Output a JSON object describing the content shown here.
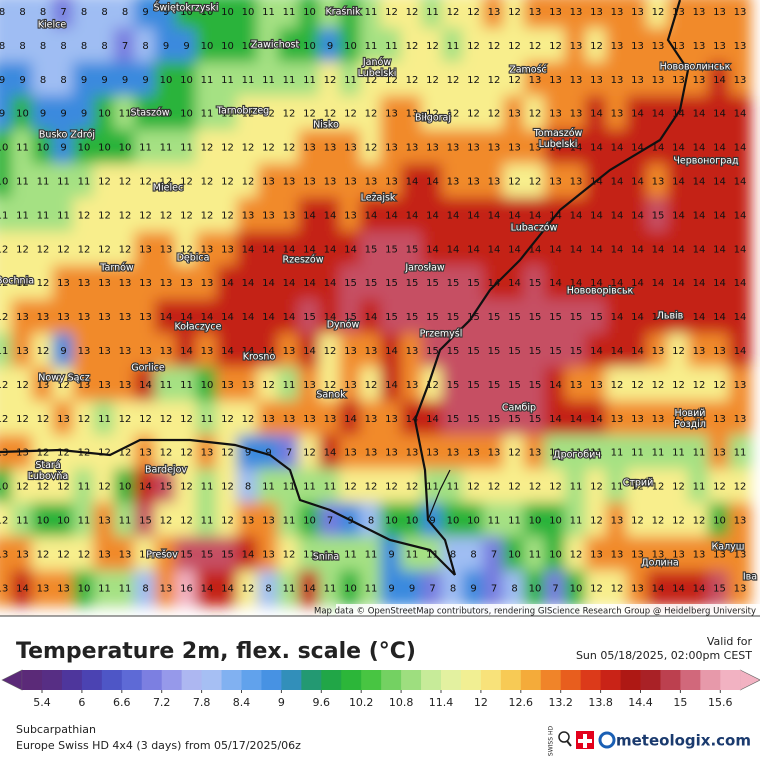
{
  "map": {
    "grid": [
      [
        8,
        8,
        8,
        7,
        8,
        8,
        8,
        9,
        9,
        10,
        10,
        10,
        10,
        11,
        11,
        10,
        11,
        10,
        11,
        12,
        12,
        11,
        12,
        12,
        13,
        12,
        13,
        13,
        13,
        13,
        13,
        13,
        12,
        13,
        13,
        13,
        13
      ],
      [
        8,
        8,
        8,
        8,
        8,
        8,
        7,
        8,
        9,
        9,
        10,
        10,
        10,
        11,
        10,
        10,
        9,
        10,
        11,
        11,
        12,
        12,
        11,
        12,
        12,
        12,
        12,
        12,
        13,
        12,
        13,
        13,
        13,
        13,
        13,
        13,
        13
      ],
      [
        9,
        9,
        8,
        8,
        9,
        9,
        9,
        9,
        10,
        10,
        11,
        11,
        11,
        11,
        11,
        11,
        12,
        11,
        12,
        12,
        12,
        12,
        12,
        12,
        12,
        12,
        13,
        13,
        13,
        13,
        13,
        13,
        13,
        13,
        13,
        14,
        13
      ],
      [
        9,
        10,
        9,
        9,
        9,
        10,
        11,
        10,
        10,
        10,
        11,
        11,
        12,
        12,
        12,
        12,
        12,
        12,
        12,
        13,
        13,
        12,
        12,
        12,
        12,
        13,
        12,
        13,
        13,
        14,
        13,
        14,
        14,
        14,
        14,
        14,
        14
      ],
      [
        10,
        11,
        10,
        9,
        10,
        10,
        10,
        11,
        11,
        11,
        12,
        12,
        12,
        12,
        12,
        13,
        13,
        13,
        12,
        13,
        13,
        13,
        13,
        13,
        13,
        13,
        13,
        14,
        14,
        14,
        14,
        14,
        14,
        14,
        14,
        14,
        14
      ],
      [
        10,
        11,
        11,
        11,
        11,
        12,
        12,
        12,
        12,
        12,
        12,
        12,
        12,
        13,
        13,
        13,
        13,
        13,
        13,
        13,
        14,
        14,
        13,
        13,
        13,
        12,
        12,
        13,
        13,
        14,
        14,
        14,
        13,
        14,
        14,
        14,
        14
      ],
      [
        11,
        11,
        11,
        11,
        12,
        12,
        12,
        12,
        12,
        12,
        12,
        12,
        13,
        13,
        13,
        14,
        14,
        13,
        14,
        14,
        14,
        14,
        14,
        14,
        14,
        14,
        14,
        14,
        14,
        14,
        14,
        14,
        15,
        14,
        14,
        14,
        14
      ],
      [
        12,
        12,
        12,
        12,
        12,
        12,
        12,
        13,
        13,
        12,
        13,
        13,
        14,
        14,
        14,
        14,
        14,
        14,
        15,
        15,
        15,
        14,
        14,
        14,
        14,
        14,
        14,
        14,
        14,
        14,
        14,
        14,
        14,
        14,
        14,
        14,
        14
      ],
      [
        12,
        12,
        12,
        13,
        13,
        13,
        13,
        13,
        13,
        13,
        13,
        14,
        14,
        14,
        14,
        14,
        14,
        15,
        15,
        15,
        15,
        15,
        15,
        15,
        14,
        14,
        15,
        14,
        14,
        14,
        14,
        14,
        14,
        14,
        14,
        14,
        14
      ],
      [
        12,
        13,
        13,
        13,
        13,
        13,
        13,
        13,
        14,
        14,
        14,
        14,
        14,
        14,
        14,
        15,
        14,
        15,
        14,
        15,
        15,
        15,
        15,
        15,
        15,
        15,
        15,
        15,
        15,
        15,
        14,
        14,
        14,
        14,
        14,
        14,
        14
      ],
      [
        11,
        13,
        12,
        9,
        13,
        13,
        13,
        13,
        13,
        14,
        13,
        14,
        14,
        14,
        13,
        14,
        12,
        13,
        13,
        14,
        13,
        15,
        15,
        15,
        15,
        15,
        15,
        15,
        15,
        14,
        14,
        14,
        13,
        12,
        13,
        13,
        14
      ],
      [
        12,
        12,
        13,
        12,
        13,
        13,
        13,
        14,
        11,
        11,
        10,
        13,
        13,
        12,
        11,
        13,
        12,
        13,
        12,
        14,
        13,
        12,
        15,
        15,
        15,
        15,
        15,
        14,
        13,
        13,
        12,
        12,
        12,
        12,
        12,
        12,
        13
      ],
      [
        12,
        12,
        12,
        13,
        12,
        11,
        12,
        12,
        12,
        12,
        11,
        12,
        12,
        13,
        13,
        13,
        13,
        14,
        13,
        13,
        14,
        14,
        15,
        15,
        15,
        15,
        15,
        14,
        14,
        14,
        13,
        13,
        13,
        13,
        13,
        13,
        13
      ],
      [
        13,
        13,
        12,
        12,
        12,
        12,
        12,
        13,
        12,
        12,
        13,
        12,
        9,
        9,
        7,
        12,
        14,
        13,
        13,
        13,
        13,
        13,
        13,
        13,
        13,
        12,
        13,
        11,
        11,
        11,
        11,
        11,
        11,
        11,
        11,
        13,
        11
      ],
      [
        10,
        12,
        12,
        12,
        11,
        12,
        10,
        14,
        15,
        12,
        11,
        12,
        8,
        11,
        11,
        11,
        11,
        12,
        12,
        12,
        12,
        11,
        11,
        12,
        12,
        12,
        12,
        12,
        11,
        12,
        11,
        12,
        12,
        12,
        11,
        12,
        12
      ],
      [
        12,
        11,
        10,
        10,
        11,
        13,
        11,
        15,
        12,
        12,
        11,
        12,
        13,
        13,
        11,
        10,
        7,
        9,
        8,
        10,
        10,
        9,
        10,
        10,
        11,
        11,
        10,
        10,
        11,
        12,
        13,
        12,
        12,
        12,
        12,
        10,
        13
      ],
      [
        13,
        13,
        12,
        12,
        12,
        13,
        13,
        12,
        13,
        15,
        15,
        15,
        14,
        13,
        12,
        11,
        11,
        11,
        11,
        9,
        11,
        11,
        8,
        8,
        7,
        10,
        11,
        10,
        12,
        13,
        13,
        13,
        13,
        13,
        13,
        13,
        13
      ],
      [
        13,
        14,
        13,
        13,
        10,
        11,
        11,
        8,
        13,
        16,
        14,
        14,
        12,
        8,
        11,
        14,
        11,
        10,
        11,
        9,
        9,
        7,
        8,
        9,
        7,
        8,
        10,
        7,
        10,
        12,
        12,
        13,
        14,
        14,
        14,
        15,
        13
      ]
    ],
    "cities": [
      "Kielce",
      "Świętokrzyski",
      "Kraśnik",
      "Zawichost",
      "Janów Lubelski",
      "Zamość",
      "Нововолинськ",
      "Staszów",
      "Tarnobrzeg",
      "Nisko",
      "Biłgoraj",
      "Busko Zdrój",
      "Tomaszów Lubelski",
      "Червоноград",
      "Mielec",
      "Leżajsk",
      "Lubaczów",
      "Dębica",
      "Rzeszów",
      "Jarosław",
      "Tarnów",
      "Bochnia",
      "Нововорівськ",
      "Львів",
      "Kołaczyce",
      "Dynów",
      "Przemyśl",
      "Krosno",
      "Nowy Sącz",
      "Gorlice",
      "Sanok",
      "Самбір",
      "Новий Розділ",
      "Stará Ľubovňa",
      "Bardejov",
      "Дрогобич",
      "Стрий",
      "Prešov",
      "Snina",
      "Калуш",
      "Долина",
      "Іва"
    ],
    "attribution": "Map data © OpenStreetMap contributors, rendering GIScience Research Group @ Heidelberg University"
  },
  "legend": {
    "title": "Temperature 2m, flex. scale (°C)",
    "valid_label": "Valid for",
    "valid_time": "Sun 05/18/2025, 02:00pm CEST",
    "ticks": [
      5.4,
      6,
      6.6,
      7.2,
      7.8,
      8.4,
      9,
      9.6,
      10.2,
      10.8,
      11.4,
      12,
      12.6,
      13.2,
      13.8,
      14.4,
      15,
      15.6
    ],
    "colors": [
      "#5b2a78",
      "#4a3aa8",
      "#4f5fd0",
      "#8b8ae6",
      "#b8c6f4",
      "#6eaaf0",
      "#3a8ade",
      "#1b9e4e",
      "#32be32",
      "#8ad872",
      "#dcf2a6",
      "#f8ee8c",
      "#f6be42",
      "#ee7020",
      "#d62818",
      "#a01212",
      "#c65064",
      "#f2b2c2"
    ]
  },
  "footer": {
    "region": "Subcarpathian",
    "model": "Europe Swiss HD 4x4 (3 days) from  05/17/2025/06z",
    "badge": "SWISS HD",
    "brand": "meteologix.com"
  }
}
